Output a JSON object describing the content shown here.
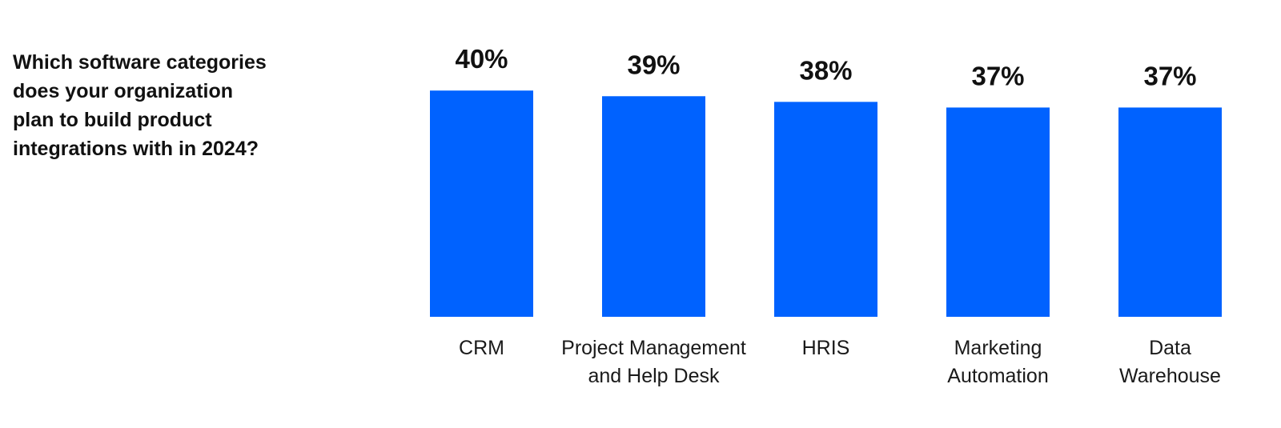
{
  "question": {
    "text": "Which software categories\ndoes your organization\nplan to build product\nintegrations with in 2024?"
  },
  "colors": {
    "bar": "#0062ff",
    "text": "#111111",
    "background": "#ffffff"
  },
  "chart_data": {
    "type": "bar",
    "title": "",
    "xlabel": "",
    "ylabel": "",
    "value_suffix": "%",
    "ylim": [
      0,
      40
    ],
    "grid": false,
    "legend": "none",
    "categories": [
      [
        "CRM"
      ],
      [
        "Project Management",
        "and Help Desk"
      ],
      [
        "HRIS"
      ],
      [
        "Marketing",
        "Automation"
      ],
      [
        "Data",
        "Warehouse"
      ]
    ],
    "values": [
      40,
      39,
      38,
      37,
      37
    ],
    "value_labels": [
      "40%",
      "39%",
      "38%",
      "37%",
      "37%"
    ]
  }
}
